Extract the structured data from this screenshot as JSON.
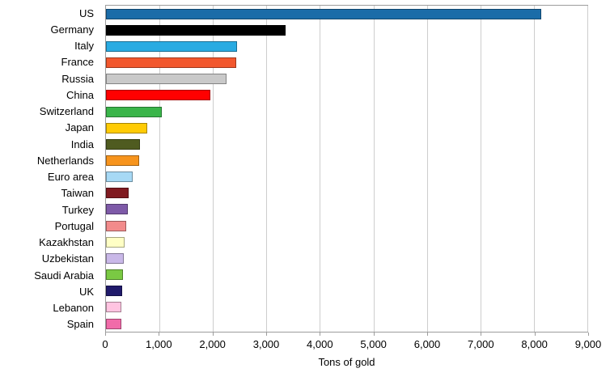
{
  "chart_data": {
    "type": "bar",
    "orientation": "horizontal",
    "title": "",
    "xlabel": "Tons of gold",
    "ylabel": "",
    "xlim": [
      0,
      9000
    ],
    "grid": true,
    "legend": "none",
    "ticks": [
      0,
      1000,
      2000,
      3000,
      4000,
      5000,
      6000,
      7000,
      8000,
      9000
    ],
    "tick_labels": [
      "0",
      "1,000",
      "2,000",
      "3,000",
      "4,000",
      "5,000",
      "6,000",
      "7,000",
      "8,000",
      "9,000"
    ],
    "categories": [
      "US",
      "Germany",
      "Italy",
      "France",
      "Russia",
      "China",
      "Switzerland",
      "Japan",
      "India",
      "Netherlands",
      "Euro area",
      "Taiwan",
      "Turkey",
      "Portugal",
      "Kazakhstan",
      "Uzbekistan",
      "Saudi Arabia",
      "UK",
      "Lebanon",
      "Spain"
    ],
    "values": [
      8133,
      3362,
      2452,
      2436,
      2250,
      1950,
      1040,
      765,
      635,
      615,
      500,
      424,
      408,
      383,
      352,
      334,
      322,
      310,
      287,
      281
    ],
    "colors": [
      "#1B6CA8",
      "#000000",
      "#29ABE2",
      "#F2572D",
      "#C9C9C9",
      "#FF0000",
      "#3AB54A",
      "#FFCB05",
      "#4F5B20",
      "#F7941D",
      "#A7D9F5",
      "#801A20",
      "#7E5AA8",
      "#F28B8B",
      "#FFFFC5",
      "#C9B8E8",
      "#7AC943",
      "#201A6B",
      "#FFC4E1",
      "#F16BA9"
    ]
  }
}
